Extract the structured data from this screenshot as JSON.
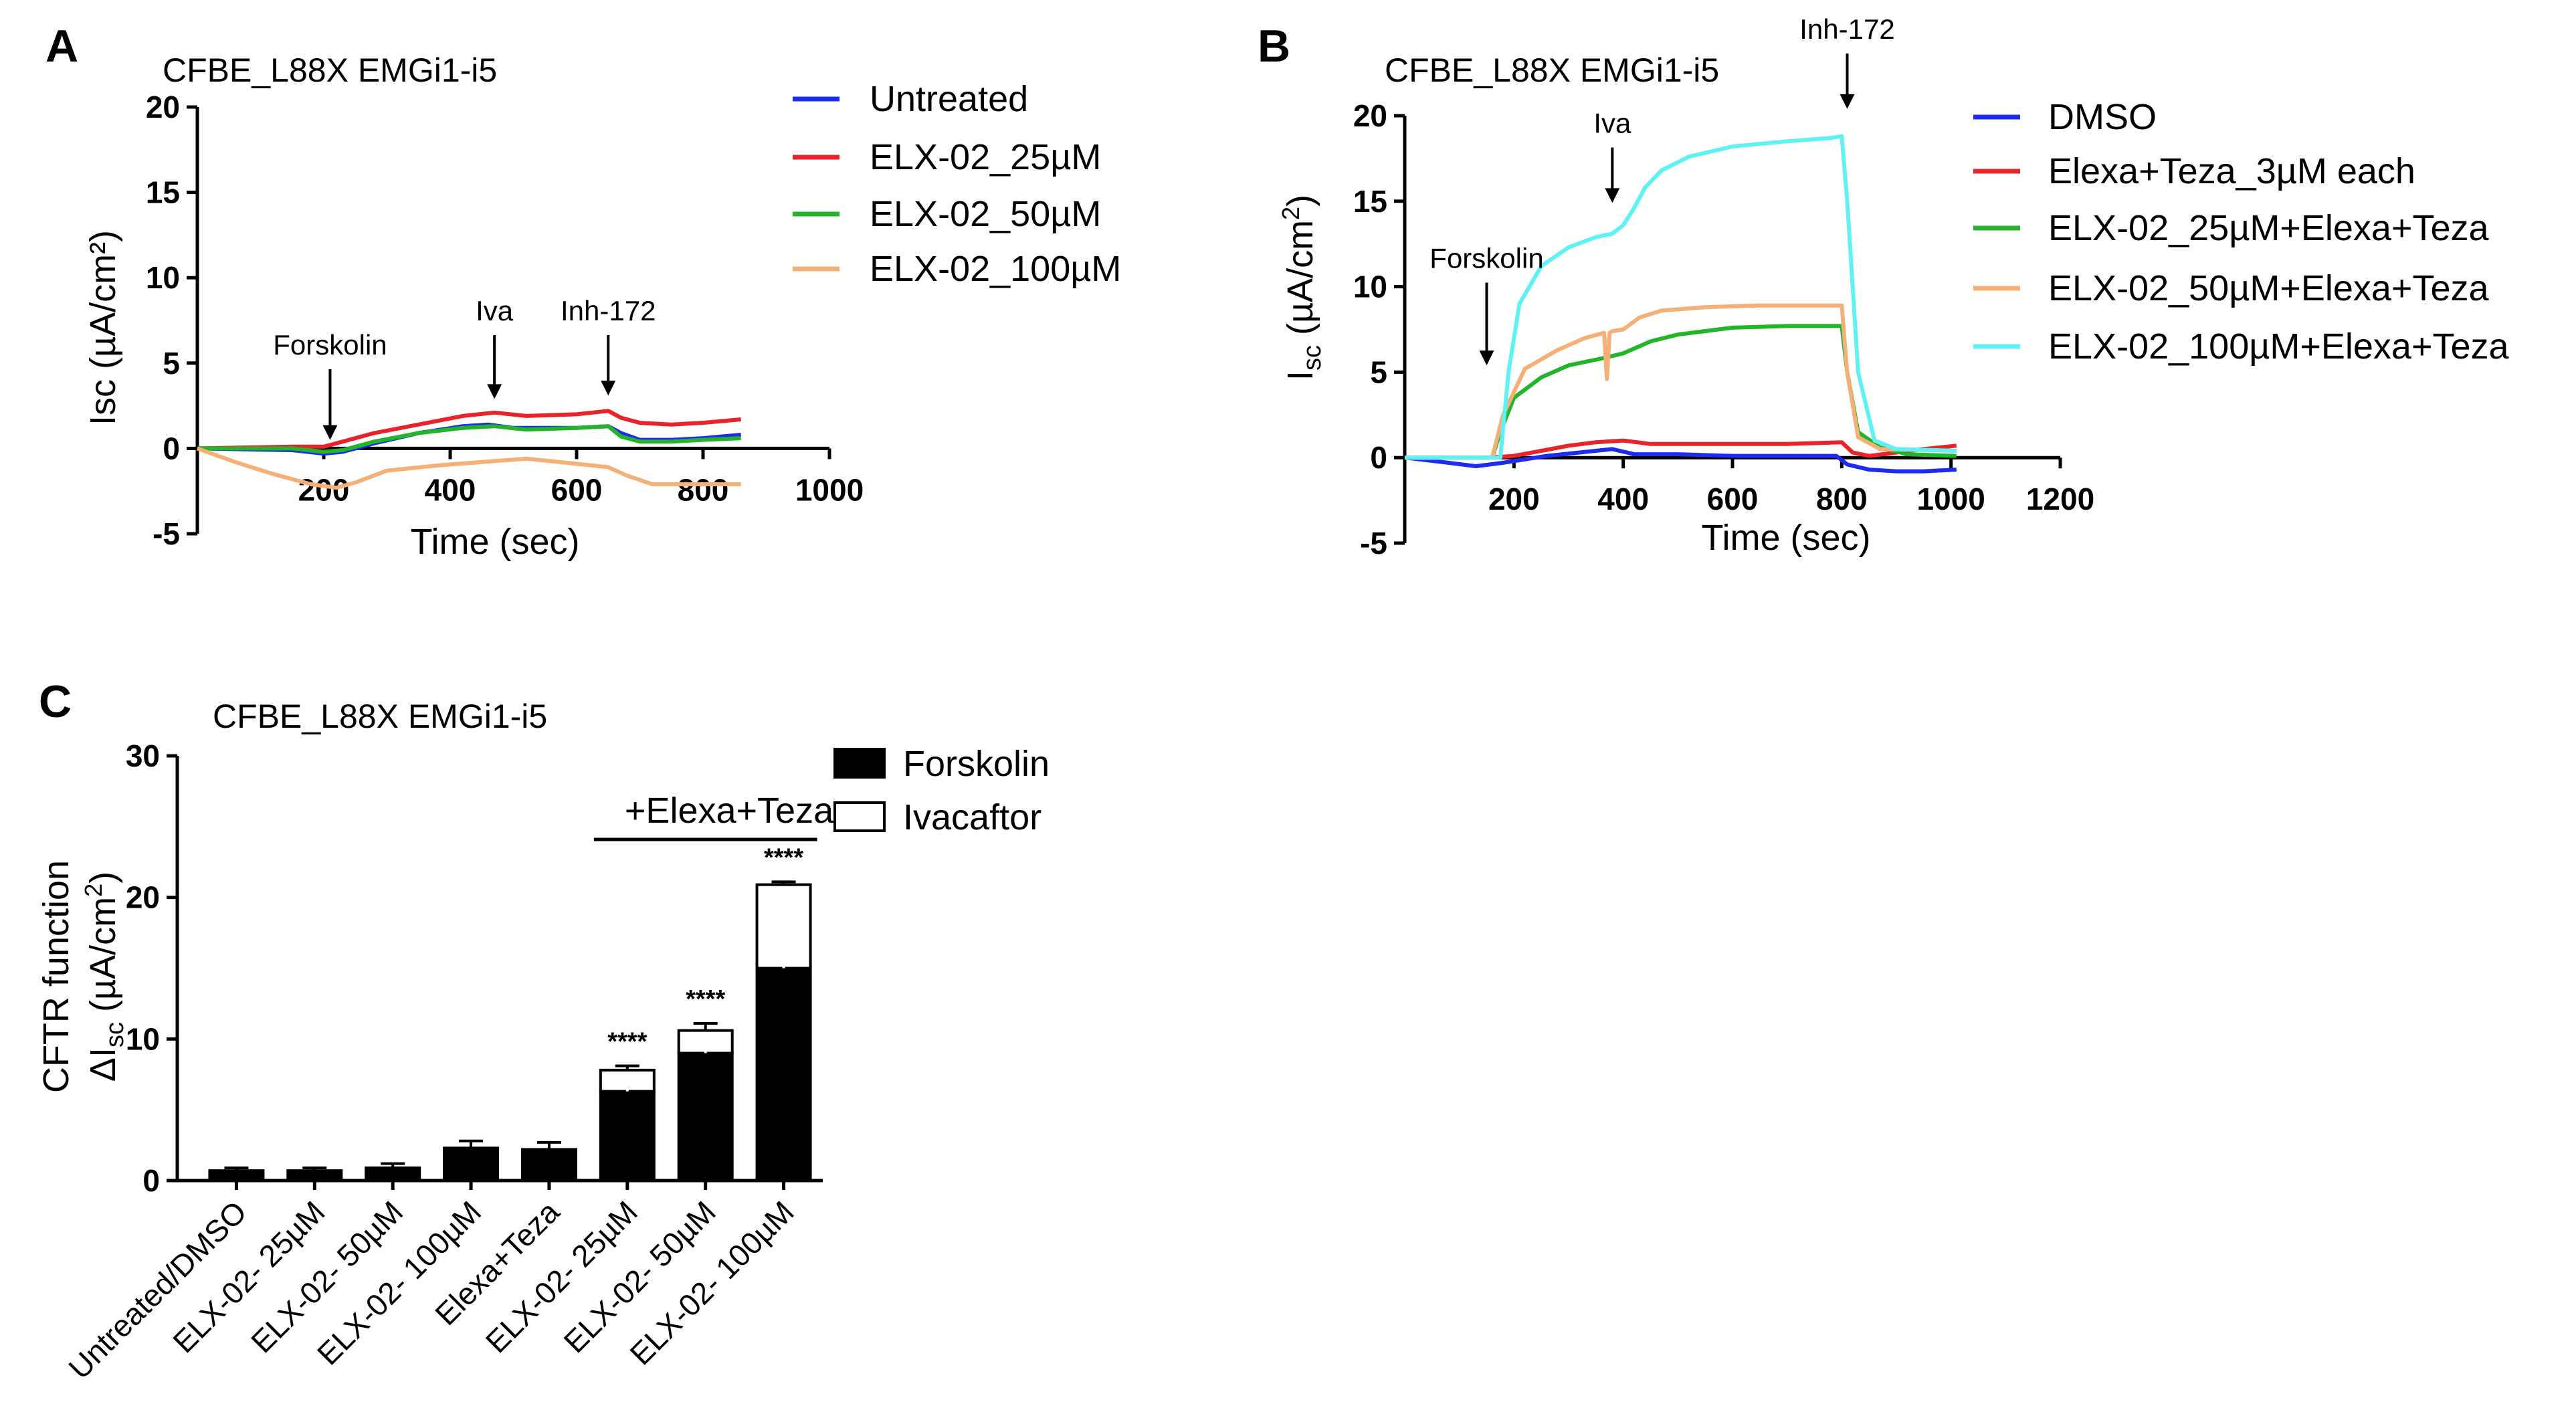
{
  "panels": [
    {
      "letter": "A",
      "chart_data": {
        "type": "line",
        "title": "CFBE_L88X EMGi1-i5",
        "xlabel": "Time (sec)",
        "ylabel": "Isc (µA/cm²)",
        "xlim": [
          0,
          1000
        ],
        "ylim": [
          -5,
          20
        ],
        "xticks": [
          200,
          400,
          600,
          800,
          1000
        ],
        "xtick_labels": [
          "200",
          "400",
          "600",
          "800",
          "1000"
        ],
        "yticks": [
          -5,
          0,
          5,
          10,
          15,
          20
        ],
        "ytick_labels": [
          "-5",
          "0",
          "5",
          "10",
          "15",
          "20"
        ],
        "annotations": [
          {
            "label": "Forskolin",
            "x": 210,
            "y_tip": 0.5,
            "y_text": 5.5
          },
          {
            "label": "Iva",
            "x": 470,
            "y_tip": 2.9,
            "y_text": 7.5
          },
          {
            "label": "Inh-172",
            "x": 650,
            "y_tip": 3.1,
            "y_text": 7.5
          }
        ],
        "series": [
          {
            "name": "Untreated",
            "color": "#1d2bf2",
            "x": [
              0,
              150,
              200,
              230,
              280,
              350,
              420,
              460,
              500,
              550,
              600,
              650,
              670,
              700,
              750,
              800,
              860
            ],
            "y": [
              0,
              -0.1,
              -0.3,
              -0.2,
              0.3,
              0.9,
              1.3,
              1.4,
              1.2,
              1.2,
              1.2,
              1.3,
              0.9,
              0.5,
              0.5,
              0.6,
              0.8
            ]
          },
          {
            "name": "ELX-02_25µM",
            "color": "#e8232a",
            "x": [
              0,
              150,
              200,
              230,
              280,
              350,
              420,
              470,
              520,
              600,
              650,
              670,
              700,
              750,
              800,
              860
            ],
            "y": [
              0,
              0.1,
              0.1,
              0.4,
              0.9,
              1.4,
              1.9,
              2.1,
              1.9,
              2.0,
              2.2,
              1.8,
              1.5,
              1.4,
              1.5,
              1.7
            ]
          },
          {
            "name": "ELX-02_50µM",
            "color": "#22b52a",
            "x": [
              0,
              150,
              200,
              230,
              280,
              350,
              420,
              470,
              520,
              600,
              650,
              670,
              700,
              750,
              800,
              860
            ],
            "y": [
              0,
              0,
              -0.2,
              -0.1,
              0.4,
              0.9,
              1.2,
              1.3,
              1.1,
              1.2,
              1.3,
              0.7,
              0.4,
              0.4,
              0.5,
              0.6
            ]
          },
          {
            "name": "ELX-02_100µM",
            "color": "#f5b078",
            "x": [
              0,
              60,
              120,
              180,
              220,
              250,
              300,
              380,
              450,
              520,
              600,
              650,
              680,
              720,
              800,
              860
            ],
            "y": [
              0,
              -0.8,
              -1.5,
              -2.1,
              -2.3,
              -2.0,
              -1.3,
              -1.0,
              -0.8,
              -0.6,
              -0.9,
              -1.1,
              -1.6,
              -2.1,
              -2.1,
              -2.1
            ]
          }
        ]
      }
    },
    {
      "letter": "B",
      "chart_data": {
        "type": "line",
        "title": "CFBE_L88X EMGi1-i5",
        "xlabel": "Time (sec)",
        "ylabel": "I_sc (µA/cm²)",
        "xlim": [
          0,
          1200
        ],
        "ylim": [
          -5,
          20
        ],
        "xticks": [
          200,
          400,
          600,
          800,
          1000,
          1200
        ],
        "xtick_labels": [
          "200",
          "400",
          "600",
          "800",
          "1000",
          "1200"
        ],
        "yticks": [
          -5,
          0,
          5,
          10,
          15,
          20
        ],
        "ytick_labels": [
          "-5",
          "0",
          "5",
          "10",
          "15",
          "20"
        ],
        "annotations": [
          {
            "label": "Forskolin",
            "x": 150,
            "y_tip": 5.4,
            "y_text": 11.1
          },
          {
            "label": "Iva",
            "x": 380,
            "y_tip": 14.9,
            "y_text": 19.0
          },
          {
            "label": "Inh-172",
            "x": 810,
            "y_tip": 20.4,
            "y_text": 24.5
          }
        ],
        "series": [
          {
            "name": "DMSO",
            "color": "#1d2bf2",
            "x": [
              0,
              80,
              130,
              180,
              260,
              320,
              380,
              420,
              500,
              600,
              700,
              790,
              810,
              850,
              900,
              950,
              1010
            ],
            "y": [
              0,
              -0.3,
              -0.5,
              -0.3,
              0.1,
              0.3,
              0.5,
              0.2,
              0.2,
              0.1,
              0.1,
              0.1,
              -0.4,
              -0.7,
              -0.8,
              -0.8,
              -0.7
            ]
          },
          {
            "name": "Elexa+Teza_3µM each",
            "color": "#e8232a",
            "x": [
              0,
              150,
              200,
              250,
              300,
              350,
              400,
              450,
              500,
              600,
              700,
              800,
              820,
              850,
              900,
              950,
              1010
            ],
            "y": [
              0,
              0,
              0.1,
              0.4,
              0.7,
              0.9,
              1.0,
              0.8,
              0.8,
              0.8,
              0.8,
              0.9,
              0.3,
              0.1,
              0.3,
              0.5,
              0.7
            ]
          },
          {
            "name": "ELX-02_25µM+Elexa+Teza",
            "color": "#22b52a",
            "x": [
              0,
              160,
              175,
              200,
              250,
              300,
              360,
              400,
              450,
              500,
              600,
              700,
              800,
              810,
              830,
              870,
              920,
              1010
            ],
            "y": [
              0,
              0,
              1.5,
              3.5,
              4.7,
              5.4,
              5.8,
              6.1,
              6.8,
              7.2,
              7.6,
              7.7,
              7.7,
              5.0,
              1.5,
              0.6,
              0.2,
              0.1
            ]
          },
          {
            "name": "ELX-02_50µM+Elexa+Teza",
            "color": "#f5b078",
            "x": [
              0,
              160,
              180,
              220,
              280,
              330,
              365,
              370,
              375,
              380,
              400,
              430,
              470,
              550,
              650,
              800,
              810,
              830,
              870,
              1010
            ],
            "y": [
              0,
              0,
              2.5,
              5.2,
              6.3,
              7.0,
              7.3,
              4.6,
              7.3,
              7.4,
              7.5,
              8.2,
              8.6,
              8.8,
              8.9,
              8.9,
              5.0,
              1.2,
              0.5,
              0.4
            ]
          },
          {
            "name": "ELX-02_100µM+Elexa+Teza",
            "color": "#5ff2f4",
            "x": [
              0,
              175,
              190,
              210,
              250,
              300,
              350,
              380,
              400,
              420,
              440,
              470,
              520,
              600,
              700,
              780,
              800,
              810,
              830,
              860,
              900,
              1010
            ],
            "y": [
              0,
              0,
              5.0,
              9.0,
              11.2,
              12.3,
              12.9,
              13.1,
              13.6,
              14.6,
              15.8,
              16.8,
              17.6,
              18.2,
              18.5,
              18.7,
              18.8,
              15.0,
              5.0,
              1.0,
              0.5,
              0.4
            ]
          }
        ]
      }
    },
    {
      "letter": "C",
      "chart_data": {
        "type": "bar",
        "stacked": true,
        "title": "CFBE_L88X EMGi1-i5",
        "ylabel_line1": "CFTR function",
        "ylabel_line2": "ΔI_sc (µA/cm²)",
        "ylim": [
          0,
          30
        ],
        "yticks": [
          0,
          10,
          20,
          30
        ],
        "ytick_labels": [
          "0",
          "10",
          "20",
          "30"
        ],
        "categories": [
          "Untreated/DMSO",
          "ELX-02- 25µM",
          "ELX-02- 50µM",
          "ELX-02- 100µM",
          "Elexa+Teza",
          "ELX-02- 25µM",
          "ELX-02- 50µM",
          "ELX-02- 100µM"
        ],
        "series": [
          {
            "name": "Forskolin",
            "color": "#000000",
            "values": [
              0.7,
              0.7,
              0.9,
              2.3,
              2.2,
              6.3,
              9.0,
              15.0
            ],
            "errors": [
              0.2,
              0.2,
              0.3,
              0.5,
              0.5,
              0.4,
              0.8,
              1.0
            ]
          },
          {
            "name": "Ivacaftor",
            "color": "#ffffff",
            "values": [
              0,
              0,
              0,
              0,
              0,
              1.5,
              1.6,
              5.9
            ],
            "errors": [
              0,
              0,
              0,
              0,
              0,
              0.3,
              0.5,
              0.2
            ]
          }
        ],
        "significance": [
          "",
          "",
          "",
          "",
          "",
          "****",
          "****",
          "****"
        ],
        "group_label": "+Elexa+Teza",
        "group_span": [
          5,
          7
        ]
      }
    }
  ]
}
